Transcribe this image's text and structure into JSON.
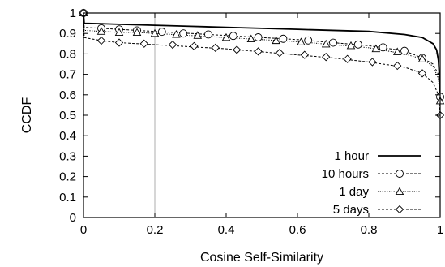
{
  "chart_data": {
    "type": "line",
    "xlabel": "Cosine Self-Similarity",
    "ylabel": "CCDF",
    "xlim": [
      0,
      1
    ],
    "ylim": [
      0,
      1
    ],
    "xticks": [
      "0",
      "0.2",
      "0.4",
      "0.6",
      "0.8",
      "1"
    ],
    "yticks": [
      "0",
      "0.1",
      "0.2",
      "0.3",
      "0.4",
      "0.5",
      "0.6",
      "0.7",
      "0.8",
      "0.9",
      "1"
    ],
    "grid": false,
    "reference_line_x": 0.2,
    "legend_position": "bottom-right",
    "series": [
      {
        "name": "1 hour",
        "line": "solid",
        "marker": "none",
        "points": [
          [
            0,
            1
          ],
          [
            0.002,
            0.95
          ],
          [
            0.1,
            0.945
          ],
          [
            0.2,
            0.94
          ],
          [
            0.3,
            0.935
          ],
          [
            0.4,
            0.93
          ],
          [
            0.5,
            0.925
          ],
          [
            0.6,
            0.92
          ],
          [
            0.7,
            0.915
          ],
          [
            0.8,
            0.91
          ],
          [
            0.9,
            0.895
          ],
          [
            0.95,
            0.88
          ],
          [
            0.98,
            0.85
          ],
          [
            0.99,
            0.82
          ],
          [
            0.995,
            0.77
          ],
          [
            0.999,
            0.65
          ],
          [
            1,
            0.59
          ]
        ]
      },
      {
        "name": "10 hours",
        "line": "dashed",
        "marker": "circle",
        "points": [
          [
            0,
            1
          ],
          [
            0.002,
            0.93
          ],
          [
            0.05,
            0.925
          ],
          [
            0.1,
            0.92
          ],
          [
            0.15,
            0.915
          ],
          [
            0.2,
            0.91
          ],
          [
            0.3,
            0.9
          ],
          [
            0.4,
            0.89
          ],
          [
            0.5,
            0.88
          ],
          [
            0.6,
            0.87
          ],
          [
            0.7,
            0.855
          ],
          [
            0.8,
            0.84
          ],
          [
            0.9,
            0.815
          ],
          [
            0.95,
            0.78
          ],
          [
            0.98,
            0.75
          ],
          [
            0.995,
            0.7
          ],
          [
            1,
            0.59
          ]
        ]
      },
      {
        "name": "1 day",
        "line": "dotted",
        "marker": "triangle",
        "points": [
          [
            0,
            1
          ],
          [
            0.002,
            0.915
          ],
          [
            0.05,
            0.91
          ],
          [
            0.1,
            0.905
          ],
          [
            0.15,
            0.905
          ],
          [
            0.2,
            0.9
          ],
          [
            0.3,
            0.89
          ],
          [
            0.4,
            0.88
          ],
          [
            0.5,
            0.87
          ],
          [
            0.6,
            0.86
          ],
          [
            0.7,
            0.845
          ],
          [
            0.8,
            0.83
          ],
          [
            0.9,
            0.8
          ],
          [
            0.95,
            0.775
          ],
          [
            0.98,
            0.74
          ],
          [
            0.995,
            0.68
          ],
          [
            1,
            0.57
          ]
        ]
      },
      {
        "name": "5 days",
        "line": "dashed",
        "marker": "diamond",
        "points": [
          [
            0,
            1
          ],
          [
            0.002,
            0.88
          ],
          [
            0.05,
            0.865
          ],
          [
            0.1,
            0.855
          ],
          [
            0.15,
            0.85
          ],
          [
            0.2,
            0.845
          ],
          [
            0.3,
            0.835
          ],
          [
            0.4,
            0.825
          ],
          [
            0.5,
            0.81
          ],
          [
            0.6,
            0.795
          ],
          [
            0.7,
            0.78
          ],
          [
            0.8,
            0.76
          ],
          [
            0.9,
            0.735
          ],
          [
            0.95,
            0.705
          ],
          [
            0.98,
            0.66
          ],
          [
            0.995,
            0.6
          ],
          [
            1,
            0.5
          ]
        ]
      }
    ],
    "markers": {
      "10 hours": [
        [
          0,
          1
        ],
        [
          0.05,
          0.925
        ],
        [
          0.1,
          0.92
        ],
        [
          0.15,
          0.915
        ],
        [
          0.22,
          0.908
        ],
        [
          0.28,
          0.9
        ],
        [
          0.35,
          0.895
        ],
        [
          0.42,
          0.888
        ],
        [
          0.49,
          0.881
        ],
        [
          0.56,
          0.874
        ],
        [
          0.63,
          0.866
        ],
        [
          0.7,
          0.855
        ],
        [
          0.77,
          0.846
        ],
        [
          0.84,
          0.832
        ],
        [
          0.9,
          0.815
        ],
        [
          0.95,
          0.78
        ],
        [
          1,
          0.59
        ]
      ],
      "1 day": [
        [
          0,
          1
        ],
        [
          0.05,
          0.91
        ],
        [
          0.1,
          0.905
        ],
        [
          0.15,
          0.905
        ],
        [
          0.2,
          0.9
        ],
        [
          0.26,
          0.895
        ],
        [
          0.32,
          0.89
        ],
        [
          0.4,
          0.88
        ],
        [
          0.47,
          0.873
        ],
        [
          0.54,
          0.865
        ],
        [
          0.61,
          0.858
        ],
        [
          0.68,
          0.848
        ],
        [
          0.75,
          0.84
        ],
        [
          0.82,
          0.825
        ],
        [
          0.88,
          0.81
        ],
        [
          0.95,
          0.775
        ],
        [
          1,
          0.57
        ]
      ],
      "5 days": [
        [
          0,
          1
        ],
        [
          0.05,
          0.865
        ],
        [
          0.1,
          0.855
        ],
        [
          0.17,
          0.85
        ],
        [
          0.25,
          0.845
        ],
        [
          0.31,
          0.838
        ],
        [
          0.37,
          0.83
        ],
        [
          0.43,
          0.82
        ],
        [
          0.49,
          0.812
        ],
        [
          0.55,
          0.805
        ],
        [
          0.62,
          0.795
        ],
        [
          0.68,
          0.785
        ],
        [
          0.74,
          0.775
        ],
        [
          0.81,
          0.76
        ],
        [
          0.88,
          0.742
        ],
        [
          0.95,
          0.705
        ],
        [
          1,
          0.5
        ]
      ]
    }
  }
}
